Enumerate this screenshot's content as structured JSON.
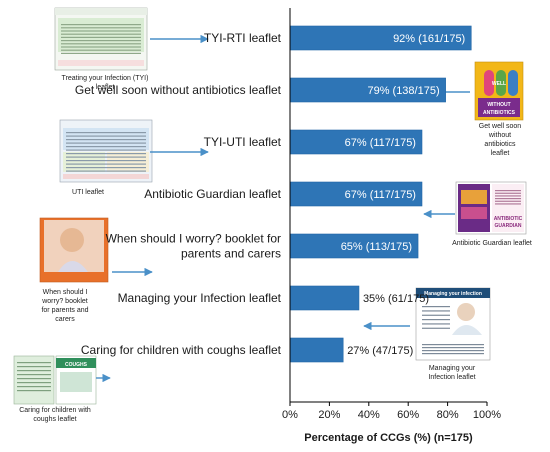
{
  "chart_data": {
    "type": "bar",
    "orientation": "horizontal",
    "categories": [
      "TYI-RTI leaflet",
      "Get well soon without antibiotics leaflet",
      "TYI-UTI leaflet",
      "Antibiotic Guardian leaflet",
      "When should I worry? booklet for parents and carers",
      "Managing your Infection leaflet",
      "Caring for children with coughs leaflet"
    ],
    "category_lines": [
      [
        "TYI-RTI leaflet"
      ],
      [
        "Get well soon without antibiotics leaflet"
      ],
      [
        "TYI-UTI leaflet"
      ],
      [
        "Antibiotic Guardian leaflet"
      ],
      [
        "When should I worry? booklet for",
        "parents and carers"
      ],
      [
        "Managing your Infection leaflet"
      ],
      [
        "Caring for children with coughs leaflet"
      ]
    ],
    "values": [
      92,
      79,
      67,
      67,
      65,
      35,
      27
    ],
    "data_labels": [
      "92% (161/175)",
      "79% (138/175)",
      "67% (117/175)",
      "67% (117/175)",
      "65% (113/175)",
      "35% (61/175)",
      "27% (47/175)"
    ],
    "xlabel": "Percentage of CCGs (%) (n=175)",
    "xlim": [
      0,
      100
    ],
    "xticks": [
      "0%",
      "20%",
      "40%",
      "60%",
      "80%",
      "100%"
    ],
    "grid": false,
    "legend": "none"
  },
  "thumbnails": {
    "tyi_rti": {
      "caption": [
        "Treating your Infection (TYI)",
        "leaflet"
      ]
    },
    "get_well": {
      "caption": [
        "Get well soon",
        "without",
        "antibiotics",
        "leaflet"
      ],
      "badge": [
        "GET",
        "WELL",
        "SOON",
        "WITHOUT",
        "ANTIBIOTICS"
      ]
    },
    "tyi_uti": {
      "caption": [
        "UTI leaflet"
      ]
    },
    "guardian": {
      "caption": [
        "Antibiotic Guardian leaflet"
      ],
      "badge": [
        "ANTIBIOTIC",
        "GUARDIAN"
      ]
    },
    "when_worry": {
      "caption": [
        "When should I",
        "worry? booklet",
        "for parents and",
        "carers"
      ]
    },
    "managing": {
      "caption": [
        "Managing your",
        "Infection leaflet"
      ],
      "title": "Managing your infection"
    },
    "coughs": {
      "caption": [
        "Caring for children with",
        "coughs leaflet"
      ],
      "title": "COUGHS"
    }
  },
  "colors": {
    "bar": "#2e75b6",
    "bar_edge": "#2166a6",
    "arrow": "#4a90c8",
    "axis": "#000000"
  }
}
